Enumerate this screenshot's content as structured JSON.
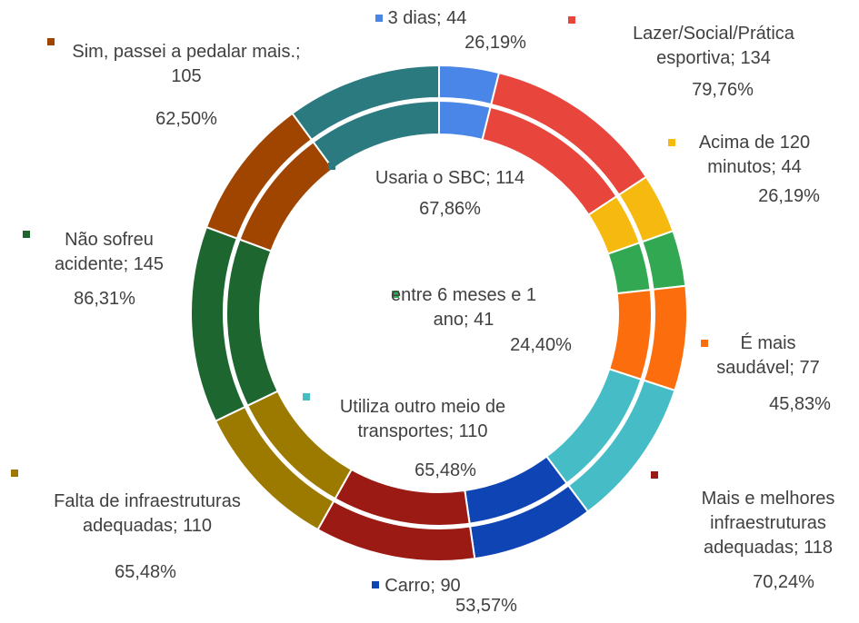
{
  "chart_data": {
    "type": "donut",
    "categories": [
      "3 dias",
      "Lazer/Social/Prática esportiva",
      "Acima de 120 minutos",
      "entre 6 meses e 1 ano",
      "É mais saudável",
      "Utiliza outro meio de transportes",
      "Carro",
      "Mais e melhores infraestruturas adequadas",
      "Falta de infraestruturas adequadas",
      "Não sofreu acidente",
      "Sim, passei a pedalar mais.",
      "Usaria o SBC"
    ],
    "values": [
      44,
      134,
      44,
      41,
      77,
      110,
      90,
      118,
      110,
      145,
      105,
      114
    ],
    "label_separator": "; ",
    "percent_labels": [
      "26,19%",
      "79,76%",
      "26,19%",
      "24,40%",
      "45,83%",
      "65,48%",
      "53,57%",
      "70,24%",
      "65,48%",
      "86,31%",
      "62,50%",
      "67,86%"
    ],
    "colors": [
      "#4a86e8",
      "#e8453c",
      "#f5b90f",
      "#33a852",
      "#fb6d0d",
      "#46bdc6",
      "#0f44b4",
      "#9c1a14",
      "#9c7a00",
      "#1e6630",
      "#a04500",
      "#2a7a80"
    ]
  }
}
